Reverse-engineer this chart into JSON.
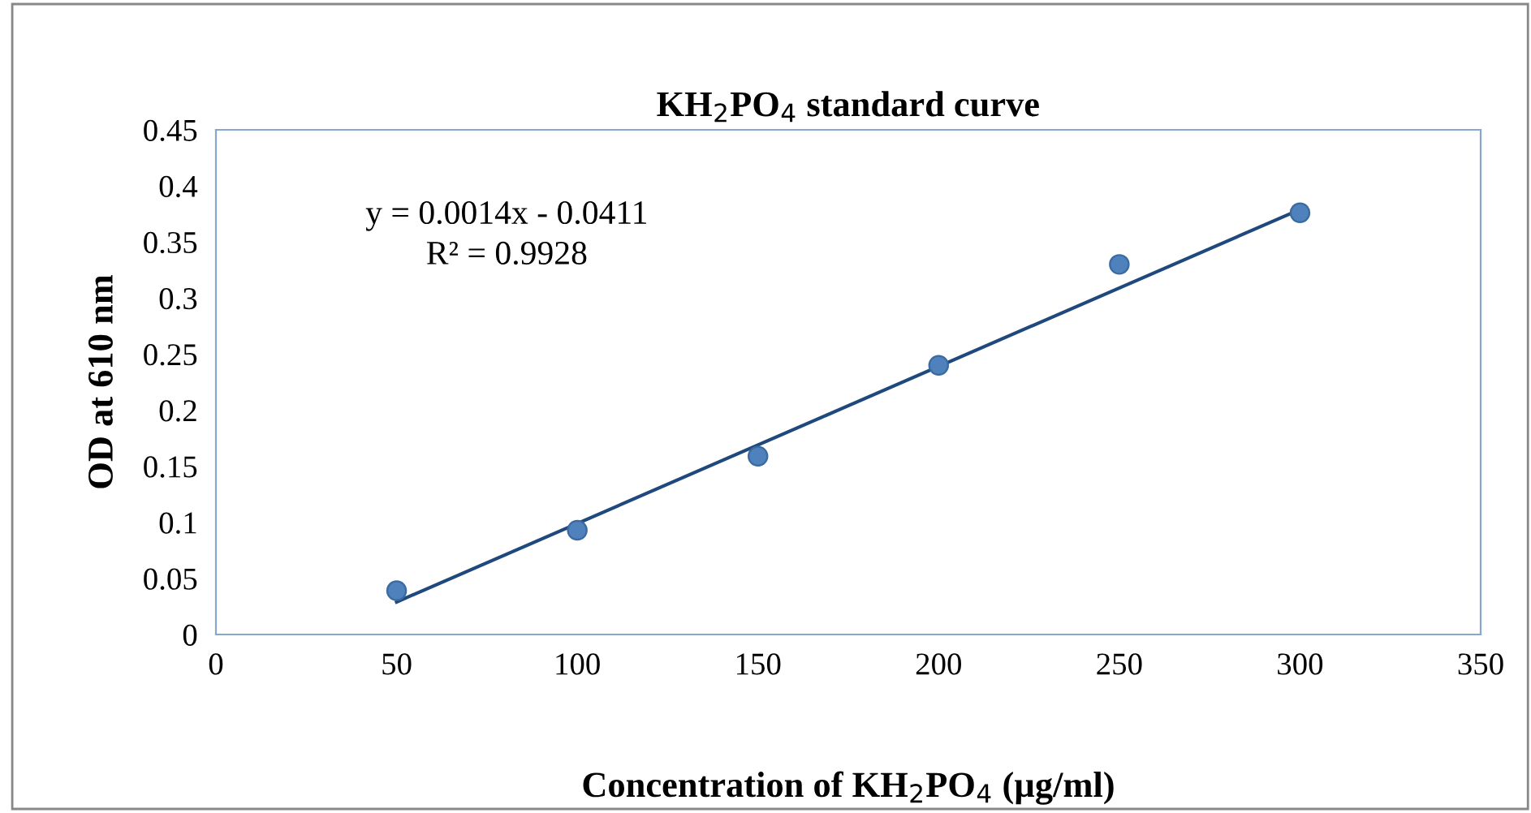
{
  "chart_data": {
    "type": "scatter",
    "title": "KH$_{2}$PO$_{4}$ standard curve",
    "xlabel": "Concentration of KH$_{2}$PO$_{4}$ (µg/ml)",
    "ylabel": "OD at 610 nm",
    "x": [
      50,
      100,
      150,
      200,
      250,
      300
    ],
    "series": [
      {
        "color": "#4f81bd",
        "values": [
          0.039,
          0.093,
          0.159,
          0.24,
          0.33,
          0.376
        ],
        "marker": "circle"
      },
      {
        "type": "line",
        "color": "#1f497d",
        "x": [
          50,
          300
        ],
        "values": [
          0.029,
          0.379
        ],
        "marker": "none",
        "line_style": "solid"
      }
    ],
    "annotations": [
      {
        "text": "y = 0.0014x - 0.0411"
      },
      {
        "text": "R² = 0.9928"
      }
    ],
    "xlim": [
      0,
      350
    ],
    "xticks": [
      0,
      50,
      100,
      150,
      200,
      250,
      300,
      350
    ],
    "ylim": [
      0,
      0.45
    ],
    "yticks": [
      0,
      0.05,
      0.1,
      0.15,
      0.2,
      0.25,
      0.3,
      0.35,
      0.4,
      0.45
    ],
    "grid": false,
    "legend": false
  }
}
